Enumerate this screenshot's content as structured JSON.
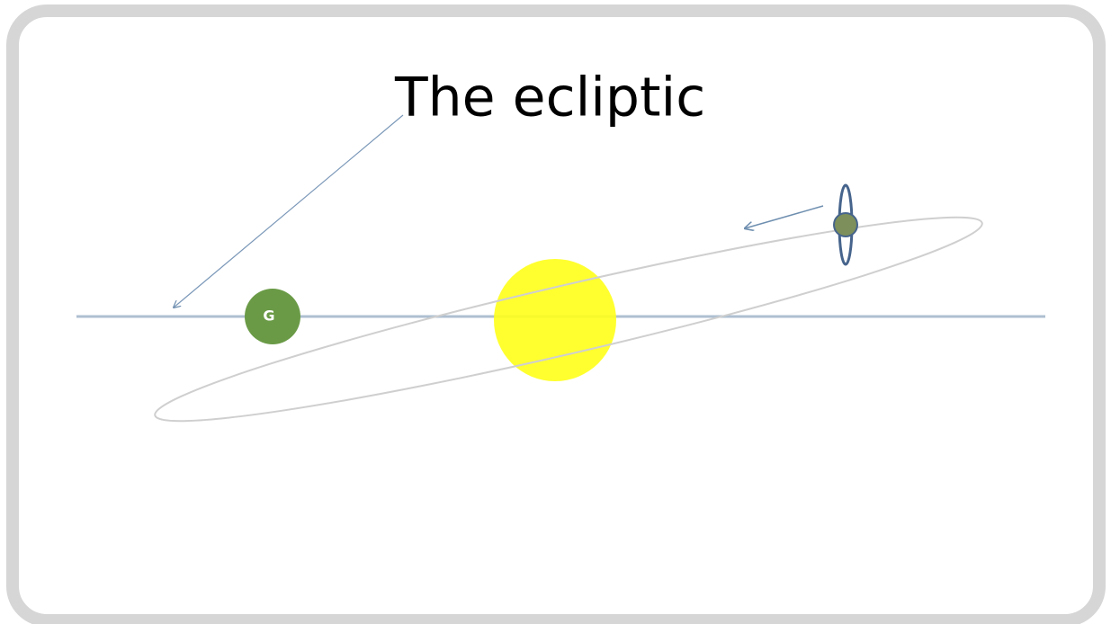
{
  "title": "The ecliptic",
  "nodes": [
    {
      "label": "G"
    }
  ]
}
